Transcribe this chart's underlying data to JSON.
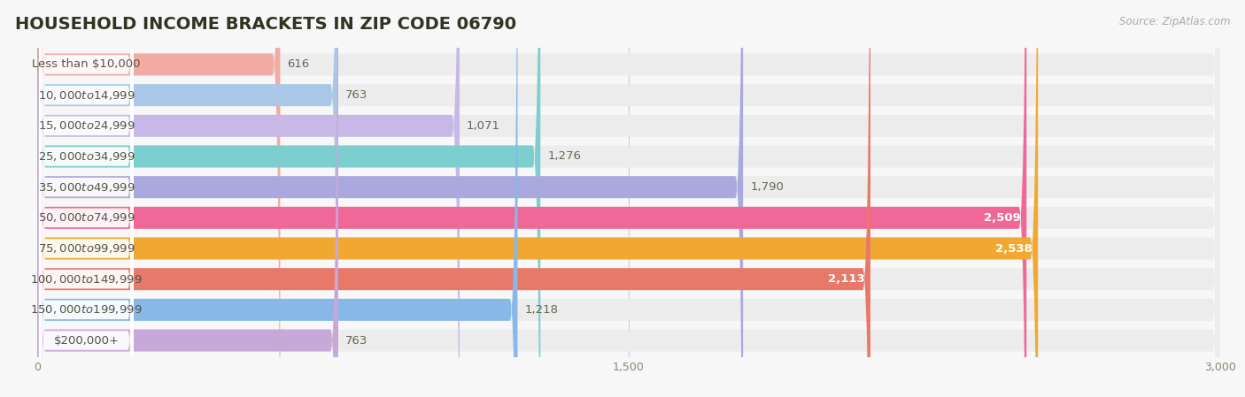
{
  "title": "HOUSEHOLD INCOME BRACKETS IN ZIP CODE 06790",
  "source": "Source: ZipAtlas.com",
  "categories": [
    "Less than $10,000",
    "$10,000 to $14,999",
    "$15,000 to $24,999",
    "$25,000 to $34,999",
    "$35,000 to $49,999",
    "$50,000 to $74,999",
    "$75,000 to $99,999",
    "$100,000 to $149,999",
    "$150,000 to $199,999",
    "$200,000+"
  ],
  "values": [
    616,
    763,
    1071,
    1276,
    1790,
    2509,
    2538,
    2113,
    1218,
    763
  ],
  "bar_colors": [
    "#f2aaa2",
    "#a9c8e8",
    "#c8b8e8",
    "#7dcece",
    "#a9a9df",
    "#f06898",
    "#f0a830",
    "#e87868",
    "#88b8e8",
    "#c8a8d8"
  ],
  "value_inside": [
    false,
    false,
    false,
    false,
    false,
    true,
    true,
    true,
    false,
    false
  ],
  "xlim": [
    0,
    3000
  ],
  "xticks": [
    0,
    1500,
    3000
  ],
  "background_color": "#f7f7f7",
  "row_bg_color": "#ececec",
  "title_fontsize": 14,
  "label_fontsize": 9.5,
  "value_fontsize": 9.5
}
